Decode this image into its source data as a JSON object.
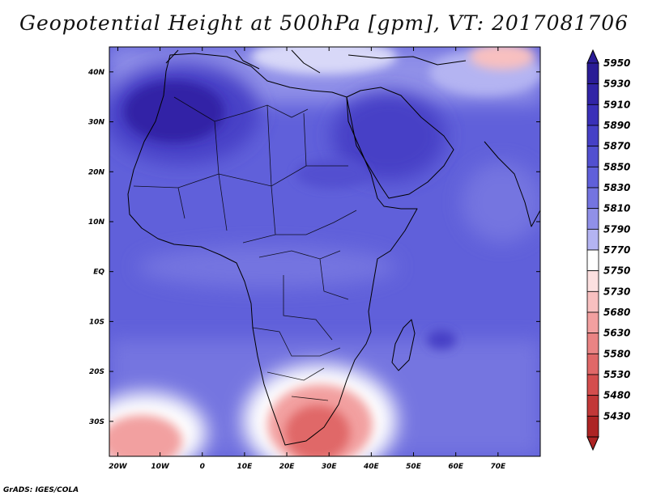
{
  "title": "Geopotential Height at 500hPa [gpm], VT: 2017081706",
  "credit": "GrADS: IGES/COLA",
  "chart_data": {
    "type": "heatmap",
    "title": "Geopotential Height at 500hPa [gpm], VT: 2017081706",
    "variable": "Geopotential Height",
    "level": "500hPa",
    "units": "gpm",
    "valid_time": "2017081706",
    "lon_range": [
      -22,
      80
    ],
    "lat_range": [
      -37,
      45
    ],
    "x_ticks": [
      {
        "lon": -20,
        "label": "20W"
      },
      {
        "lon": -10,
        "label": "10W"
      },
      {
        "lon": 0,
        "label": "0"
      },
      {
        "lon": 10,
        "label": "10E"
      },
      {
        "lon": 20,
        "label": "20E"
      },
      {
        "lon": 30,
        "label": "30E"
      },
      {
        "lon": 40,
        "label": "40E"
      },
      {
        "lon": 50,
        "label": "50E"
      },
      {
        "lon": 60,
        "label": "60E"
      },
      {
        "lon": 70,
        "label": "70E"
      }
    ],
    "y_ticks": [
      {
        "lat": 40,
        "label": "40N"
      },
      {
        "lat": 30,
        "label": "30N"
      },
      {
        "lat": 20,
        "label": "20N"
      },
      {
        "lat": 10,
        "label": "10N"
      },
      {
        "lat": 0,
        "label": "EQ"
      },
      {
        "lat": -10,
        "label": "10S"
      },
      {
        "lat": -20,
        "label": "20S"
      },
      {
        "lat": -30,
        "label": "30S"
      }
    ],
    "colorbar": [
      {
        "label": "5950",
        "color": "#2a1c96"
      },
      {
        "label": "5930",
        "color": "#3124a6"
      },
      {
        "label": "5910",
        "color": "#3a30b8"
      },
      {
        "label": "5890",
        "color": "#4640c6"
      },
      {
        "label": "5870",
        "color": "#5250d0"
      },
      {
        "label": "5850",
        "color": "#6060da"
      },
      {
        "label": "5830",
        "color": "#7474e0"
      },
      {
        "label": "5810",
        "color": "#9090e8"
      },
      {
        "label": "5790",
        "color": "#b4b4f2"
      },
      {
        "label": "5770",
        "color": "#ffffff"
      },
      {
        "label": "5750",
        "color": "#fce0e0"
      },
      {
        "label": "5730",
        "color": "#f8c0c0"
      },
      {
        "label": "5680",
        "color": "#f2a0a0"
      },
      {
        "label": "5630",
        "color": "#ea8484"
      },
      {
        "label": "5580",
        "color": "#e06868"
      },
      {
        "label": "5530",
        "color": "#d44e4e"
      },
      {
        "label": "5480",
        "color": "#c23838"
      },
      {
        "label": "5430",
        "color": "#ad2424"
      }
    ],
    "features": [
      {
        "name": "subtropical-high-sahara",
        "lon": -8,
        "lat": 30,
        "value": 5920
      },
      {
        "name": "arabian-high",
        "lon": 45,
        "lat": 26,
        "value": 5890
      },
      {
        "name": "madagascar-east-high",
        "lon": 58,
        "lat": -14,
        "value": 5880
      },
      {
        "name": "southern-africa-trough",
        "lon": 28,
        "lat": -32,
        "value": 5670
      },
      {
        "name": "southwest-atlantic-trough",
        "lon": -14,
        "lat": -33,
        "value": 5690
      },
      {
        "name": "central-asia-trough",
        "lon": 75,
        "lat": 42,
        "value": 5740
      }
    ]
  }
}
